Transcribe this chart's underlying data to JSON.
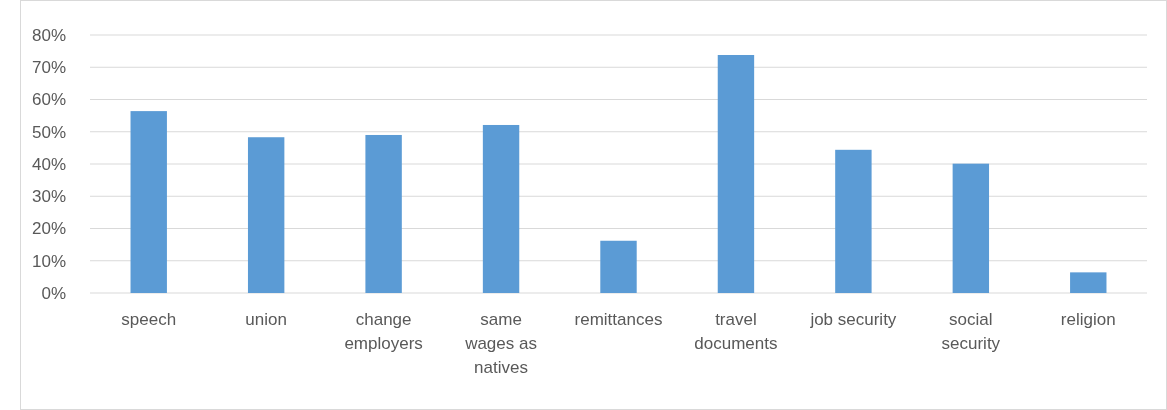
{
  "chart_data": {
    "type": "bar",
    "categories": [
      "speech",
      "union",
      "change\nemployers",
      "same\nwages as\nnatives",
      "remittances",
      "travel\ndocuments",
      "job security",
      "social\nsecurity",
      "religion"
    ],
    "values": [
      56.4,
      48.3,
      49.0,
      52.1,
      16.2,
      73.8,
      44.4,
      40.1,
      6.4
    ],
    "color": "#5b9bd5",
    "ylim": [
      0,
      80
    ],
    "yticks": [
      {
        "value": 0,
        "label": "0%"
      },
      {
        "value": 10,
        "label": "10%"
      },
      {
        "value": 20,
        "label": "20%"
      },
      {
        "value": 30,
        "label": "30%"
      },
      {
        "value": 40,
        "label": "40%"
      },
      {
        "value": 50,
        "label": "50%"
      },
      {
        "value": 60,
        "label": "60%"
      },
      {
        "value": 70,
        "label": "70%"
      },
      {
        "value": 80,
        "label": "80%"
      }
    ],
    "grid": "y"
  }
}
